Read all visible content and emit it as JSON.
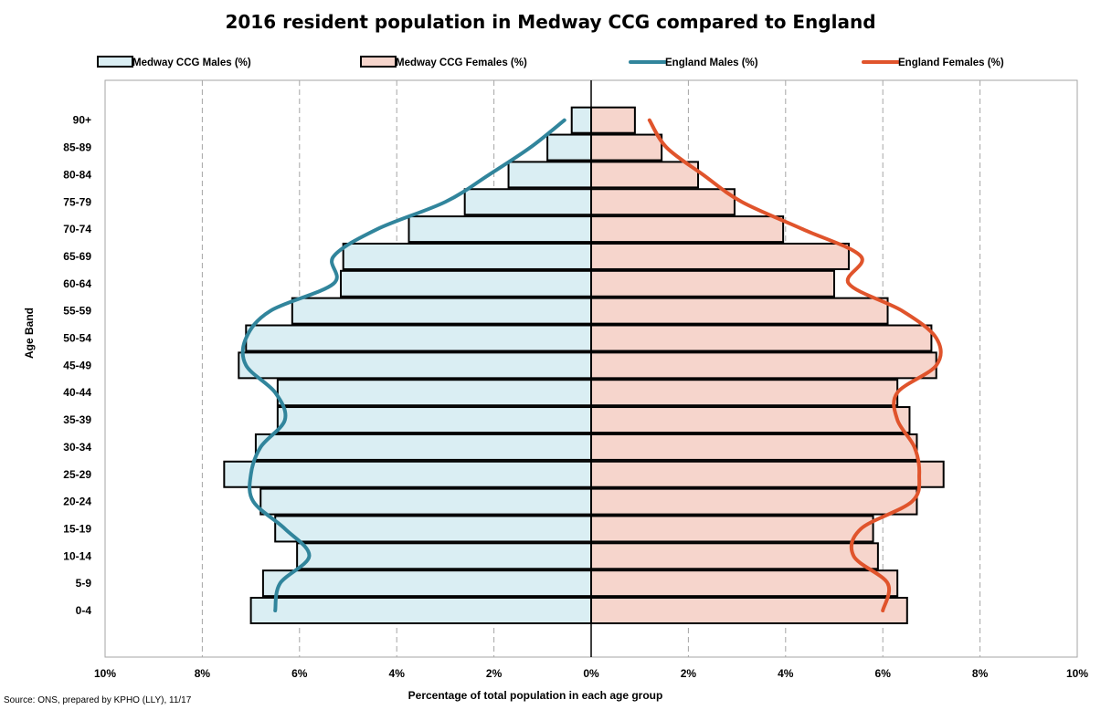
{
  "title": "2016 resident population in Medway CCG compared to England",
  "source": "Source: ONS, prepared by KPHO (LLY), 11/17",
  "colors": {
    "male_fill": "#daeef3",
    "female_fill": "#f6d5cc",
    "england_males": "#31859c",
    "england_females": "#e0542c",
    "grid": "#a6a6a6"
  },
  "chart_data": {
    "type": "bar",
    "orientation": "horizontal",
    "title": "2016 resident population in Medway CCG compared to England",
    "xlabel": "Percentage of total population in each age group",
    "ylabel": "Age Band",
    "xlim": [
      -10,
      10
    ],
    "x_ticks": [
      -10,
      -8,
      -6,
      -4,
      -2,
      0,
      2,
      4,
      6,
      8,
      10
    ],
    "x_tick_labels": [
      "10%",
      "8%",
      "6%",
      "4%",
      "2%",
      "0%",
      "2%",
      "4%",
      "6%",
      "8%",
      "10%"
    ],
    "grid": true,
    "legend_position": "top",
    "categories": [
      "0-4",
      "5-9",
      "10-14",
      "15-19",
      "20-24",
      "25-29",
      "30-34",
      "35-39",
      "40-44",
      "45-49",
      "50-54",
      "55-59",
      "60-64",
      "65-69",
      "70-74",
      "75-79",
      "80-84",
      "85-89",
      "90+"
    ],
    "series": [
      {
        "name": "Medway CCG Males (%)",
        "kind": "bar",
        "side": "left",
        "values": [
          7.0,
          6.75,
          6.05,
          6.5,
          6.8,
          7.55,
          6.9,
          6.45,
          6.45,
          7.25,
          7.1,
          6.15,
          5.15,
          5.1,
          3.75,
          2.6,
          1.7,
          0.9,
          0.4
        ]
      },
      {
        "name": "Medway CCG Females (%)",
        "kind": "bar",
        "side": "right",
        "values": [
          6.5,
          6.3,
          5.9,
          5.8,
          6.7,
          7.25,
          6.7,
          6.55,
          6.3,
          7.1,
          7.0,
          6.1,
          5.0,
          5.3,
          3.95,
          2.95,
          2.2,
          1.45,
          0.9
        ]
      },
      {
        "name": "England Males (%)",
        "kind": "line",
        "side": "left",
        "values": [
          6.5,
          6.4,
          5.8,
          6.3,
          6.95,
          7.0,
          6.8,
          6.3,
          6.5,
          7.1,
          7.1,
          6.6,
          5.3,
          5.3,
          4.4,
          3.0,
          2.1,
          1.25,
          0.55
        ]
      },
      {
        "name": "England Females (%)",
        "kind": "line",
        "side": "right",
        "values": [
          6.0,
          6.1,
          5.4,
          5.55,
          6.6,
          6.75,
          6.65,
          6.3,
          6.3,
          7.1,
          7.1,
          6.4,
          5.3,
          5.55,
          4.35,
          3.1,
          2.3,
          1.55,
          1.2
        ]
      }
    ]
  }
}
